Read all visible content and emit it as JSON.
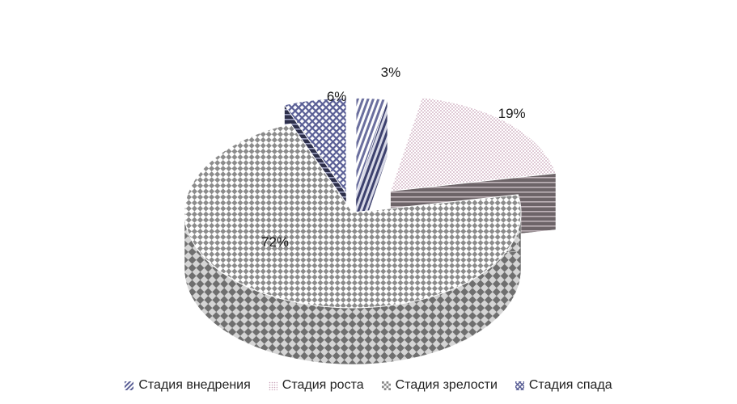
{
  "chart_data": {
    "type": "pie",
    "style": "3d-exploded",
    "categories": [
      "Стадия внедрения",
      "Стадия роста",
      "Стадия зрелости",
      "Стадия спада"
    ],
    "values": [
      3,
      19,
      72,
      6
    ],
    "data_labels": [
      "3%",
      "19%",
      "72%",
      "6%"
    ],
    "legend_position": "bottom",
    "title": "",
    "colors": [
      "#6b6f9e",
      "#c8a3b8",
      "#8a8a8a",
      "#5a5f96"
    ],
    "patterns": [
      "diagonal-stripes",
      "dots",
      "checkerboard",
      "diamond-grid"
    ]
  }
}
